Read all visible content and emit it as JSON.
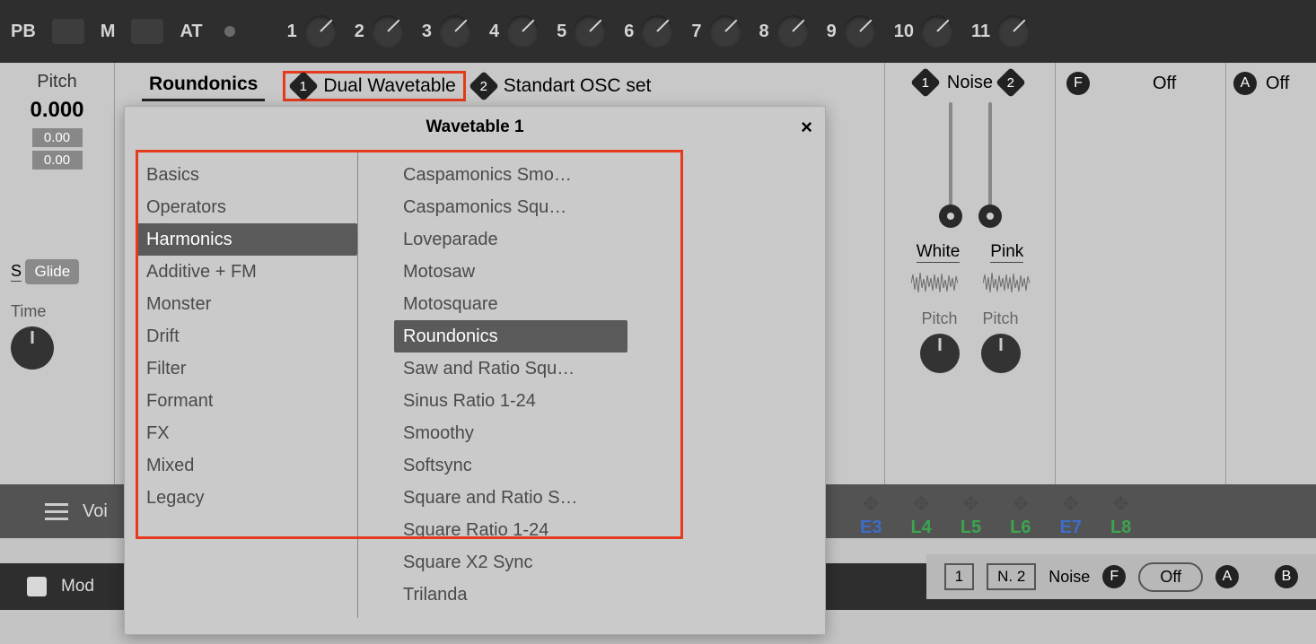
{
  "topbar": {
    "pb_label": "PB",
    "m_label": "M",
    "at_label": "AT",
    "knobs": [
      "1",
      "2",
      "3",
      "4",
      "5",
      "6",
      "7",
      "8",
      "9",
      "10",
      "11"
    ]
  },
  "pitch": {
    "title": "Pitch",
    "value": "0.000",
    "sub1": "0.00",
    "sub2": "0.00",
    "s_label": "S",
    "glide": "Glide",
    "time_label": "Time",
    "pct": "%"
  },
  "osc": {
    "tab1": "Roundonics",
    "tab2_label": "Dual Wavetable",
    "tab2_badge": "1",
    "tab3_label": "Standart OSC set",
    "tab3_badge": "2",
    "j_icon": "J"
  },
  "noise": {
    "title": "Noise",
    "badge1": "1",
    "badge2": "2",
    "type1": "White",
    "type2": "Pink",
    "pitch_label": "Pitch",
    "wave_color": "#6a6a6a"
  },
  "off_f": {
    "badge": "F",
    "label": "Off"
  },
  "off_a": {
    "badge": "A",
    "label": "Off"
  },
  "modbar": {
    "voi": "Voi"
  },
  "envrow": {
    "items": [
      {
        "lbl": "E3",
        "color": "blue"
      },
      {
        "lbl": "L4",
        "color": "green"
      },
      {
        "lbl": "L5",
        "color": "green"
      },
      {
        "lbl": "L6",
        "color": "green"
      },
      {
        "lbl": "E7",
        "color": "blue"
      },
      {
        "lbl": "L8",
        "color": "green"
      }
    ]
  },
  "bottombar": {
    "mod": "Mod"
  },
  "bottomright": {
    "items": [
      "1",
      "N. 2",
      "Noise"
    ],
    "f_label": "Off",
    "a_label": "A",
    "b_label": "B",
    "f_badge": "F"
  },
  "popup": {
    "title": "Wavetable 1",
    "close": "×",
    "categories": [
      "Basics",
      "Operators",
      "Harmonics",
      "Additive + FM",
      "Monster",
      "Drift",
      "Filter",
      "Formant",
      "FX",
      "Mixed",
      "Legacy"
    ],
    "cat_selected": 2,
    "items": [
      "Caspamonics Smo…",
      "Caspamonics Squ…",
      "Loveparade",
      "Motosaw",
      "Motosquare",
      "Roundonics",
      "Saw and Ratio Squ…",
      "Sinus Ratio 1-24",
      "Smoothy",
      "Softsync",
      "Square and Ratio S…",
      "Square Ratio 1-24",
      "Square X2 Sync",
      "Trilanda"
    ],
    "item_selected": 5
  },
  "colors": {
    "highlight": "#e63a1e",
    "bg": "#c4c4c4"
  }
}
